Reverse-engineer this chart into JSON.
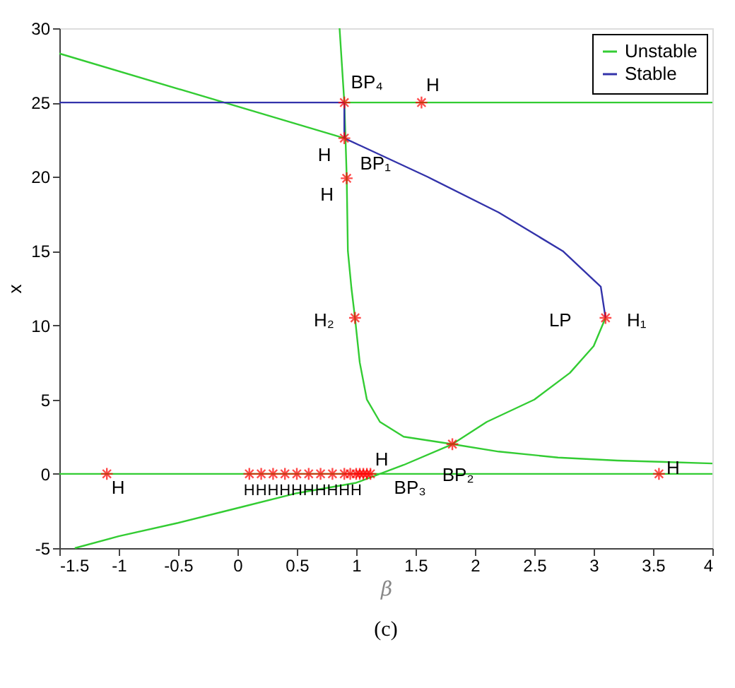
{
  "chart_data": {
    "type": "line",
    "xlabel": "β",
    "ylabel": "x",
    "xlim": [
      -1.5,
      4
    ],
    "ylim": [
      -5,
      30
    ],
    "xticks": [
      -1.5,
      -1,
      -0.5,
      0,
      0.5,
      1,
      1.5,
      2,
      2.5,
      3,
      3.5,
      4
    ],
    "yticks": [
      -5,
      0,
      5,
      10,
      15,
      20,
      25,
      30
    ],
    "grid": false,
    "legend": "top right",
    "series": [
      {
        "name": "Unstable",
        "color": "#33cc33",
        "x": [
          -1.5,
          0.9
        ],
        "values": [
          28.3,
          22.6
        ]
      },
      {
        "name": "Stable",
        "color": "#3333aa",
        "x": [
          0.9,
          1.6,
          2.2,
          2.74,
          3.06,
          3.1
        ],
        "values": [
          22.6,
          20,
          17.6,
          15,
          12.6,
          10.5
        ]
      },
      {
        "color": "#33cc33",
        "x": [
          3.1,
          3.0,
          2.8,
          2.5,
          2.1,
          1.81,
          1.4,
          1.0,
          0.5,
          0,
          -0.5,
          -1.0,
          -1.37
        ],
        "values": [
          10.5,
          8.6,
          6.8,
          5.0,
          3.5,
          2.0,
          0.6,
          -0.6,
          -1.3,
          -2.3,
          -3.3,
          -4.2,
          -5
        ]
      },
      {
        "color": "#33cc33",
        "x": [
          0.86,
          0.9,
          0.91,
          0.92,
          0.93,
          0.96,
          0.99,
          1.03,
          1.09,
          1.2,
          1.4,
          1.81,
          2.2,
          2.7,
          3.2,
          3.6,
          4
        ],
        "values": [
          30,
          25,
          22.6,
          20,
          15,
          12.5,
          10.5,
          7.5,
          5.0,
          3.5,
          2.5,
          2.0,
          1.5,
          1.1,
          0.9,
          0.8,
          0.7
        ]
      },
      {
        "color": "#3333aa",
        "x": [
          0.9,
          0.9
        ],
        "values": [
          25,
          22.6
        ]
      },
      {
        "color": "#3333aa",
        "x": [
          -1.5,
          0.9
        ],
        "values": [
          25,
          25
        ]
      },
      {
        "color": "#33cc33",
        "x": [
          0.9,
          4
        ],
        "values": [
          25,
          25
        ]
      },
      {
        "color": "#33cc33",
        "x": [
          -1.5,
          4
        ],
        "values": [
          0,
          0
        ]
      },
      {
        "type": "scatter",
        "color": "#ff0000",
        "marker": "cross",
        "x": [
          0.9,
          1.55,
          0.9,
          0.92,
          0.99,
          3.1,
          1.81,
          -1.1,
          3.55,
          0.1,
          0.2,
          0.3,
          0.4,
          0.5,
          0.6,
          0.7,
          0.8,
          0.9,
          0.95,
          1.0,
          1.03,
          1.06,
          1.09,
          1.12
        ],
        "values": [
          25,
          25,
          22.6,
          19.9,
          10.5,
          10.5,
          2.0,
          0,
          0,
          0,
          0,
          0,
          0,
          0,
          0,
          0,
          0,
          0,
          0,
          0,
          0,
          0,
          0,
          0
        ]
      }
    ],
    "annotations": [
      {
        "text": "BP₄",
        "x": 0.9,
        "y": 25
      },
      {
        "text": "H",
        "x": 1.55,
        "y": 25
      },
      {
        "text": "H",
        "x": 0.9,
        "y": 22.6
      },
      {
        "text": "BP₁",
        "x": 0.9,
        "y": 22.6
      },
      {
        "text": "H",
        "x": 0.92,
        "y": 19.9
      },
      {
        "text": "H₂",
        "x": 0.99,
        "y": 10.5
      },
      {
        "text": "LP",
        "x": 3.1,
        "y": 10.5
      },
      {
        "text": "H₁",
        "x": 3.1,
        "y": 10.5
      },
      {
        "text": "BP₂",
        "x": 1.81,
        "y": 2.0
      },
      {
        "text": "H",
        "x": -1.1,
        "y": 0
      },
      {
        "text": "H",
        "x": 3.55,
        "y": 0
      },
      {
        "text": "H",
        "x": 1.12,
        "y": 0
      },
      {
        "text": "BP₃",
        "x": 1.12,
        "y": 0
      },
      {
        "text": "H",
        "x": 0.1,
        "y": 0
      },
      {
        "text": "H",
        "x": 0.2,
        "y": 0
      },
      {
        "text": "H",
        "x": 0.3,
        "y": 0
      },
      {
        "text": "H",
        "x": 0.4,
        "y": 0
      },
      {
        "text": "H",
        "x": 0.5,
        "y": 0
      },
      {
        "text": "H",
        "x": 0.6,
        "y": 0
      },
      {
        "text": "H",
        "x": 0.7,
        "y": 0
      },
      {
        "text": "H",
        "x": 0.8,
        "y": 0
      },
      {
        "text": "H",
        "x": 0.9,
        "y": 0
      },
      {
        "text": "H",
        "x": 1.0,
        "y": 0
      },
      "(c)"
    ]
  }
}
